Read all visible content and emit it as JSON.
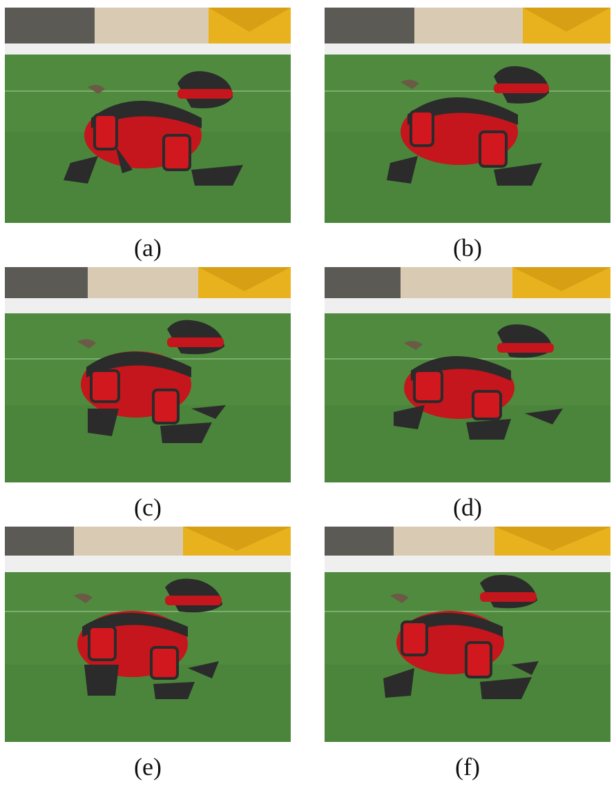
{
  "figure": {
    "panels": [
      {
        "caption": "(a)"
      },
      {
        "caption": "(b)"
      },
      {
        "caption": "(c)"
      },
      {
        "caption": "(d)"
      },
      {
        "caption": "(e)"
      },
      {
        "caption": "(f)"
      }
    ]
  },
  "colors": {
    "grass": "#4f8a3e",
    "grass_dark": "#3f7432",
    "wall": "#d9cbb3",
    "sign": "#e8b21f",
    "robot_body": "#c4161c",
    "robot_dark": "#2b2b2b"
  }
}
